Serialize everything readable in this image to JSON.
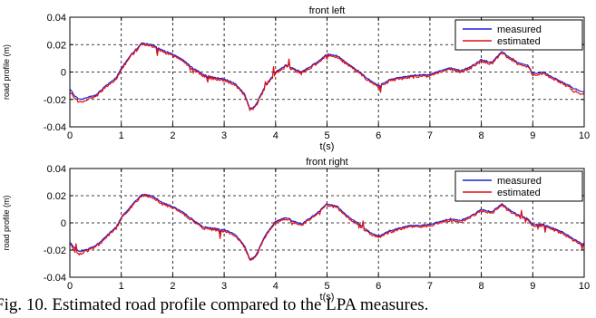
{
  "caption": "Fig. 10.   Estimated road profile compared to the LPA measures.",
  "colors": {
    "measured": "#1f1fd8",
    "estimated": "#e01010",
    "grid": "#000000"
  },
  "chart_data": [
    {
      "type": "line",
      "title": "front left",
      "xlabel": "t(s)",
      "ylabel": "road profile (m)",
      "xlim": [
        0,
        10
      ],
      "ylim": [
        -0.04,
        0.04
      ],
      "xticks": [
        "0",
        "1",
        "2",
        "3",
        "4",
        "5",
        "6",
        "7",
        "8",
        "9",
        "10"
      ],
      "yticks": [
        "0.04",
        "0.02",
        "0",
        "-0.02",
        "-0.04"
      ],
      "grid": true,
      "legend_position": "top-right",
      "x": [
        0,
        0.1,
        0.2,
        0.3,
        0.5,
        0.7,
        0.9,
        1.0,
        1.2,
        1.4,
        1.6,
        1.8,
        2.0,
        2.2,
        2.4,
        2.6,
        2.8,
        3.0,
        3.2,
        3.4,
        3.5,
        3.6,
        3.8,
        4.0,
        4.2,
        4.5,
        4.8,
        5.0,
        5.2,
        5.4,
        5.6,
        5.8,
        6.0,
        6.2,
        6.4,
        6.6,
        6.8,
        7.0,
        7.2,
        7.4,
        7.6,
        7.8,
        8.0,
        8.2,
        8.4,
        8.5,
        8.7,
        8.9,
        9.0,
        9.2,
        9.4,
        9.6,
        9.8,
        10.0
      ],
      "series": [
        {
          "name": "measured",
          "values": [
            -0.012,
            -0.018,
            -0.02,
            -0.019,
            -0.017,
            -0.01,
            -0.004,
            0.003,
            0.013,
            0.021,
            0.02,
            0.016,
            0.013,
            0.009,
            0.003,
            -0.002,
            -0.004,
            -0.005,
            -0.008,
            -0.016,
            -0.027,
            -0.025,
            -0.01,
            0.0,
            0.005,
            0.0,
            0.007,
            0.013,
            0.012,
            0.006,
            0.001,
            -0.005,
            -0.01,
            -0.006,
            -0.004,
            -0.003,
            -0.002,
            -0.002,
            0.001,
            0.003,
            0.001,
            0.004,
            0.009,
            0.007,
            0.015,
            0.012,
            0.007,
            0.005,
            -0.001,
            0.0,
            -0.004,
            -0.008,
            -0.012,
            -0.015
          ]
        },
        {
          "name": "estimated",
          "values": [
            -0.014,
            -0.02,
            -0.022,
            -0.021,
            -0.018,
            -0.011,
            -0.005,
            0.002,
            0.012,
            0.02,
            0.019,
            0.015,
            0.012,
            0.008,
            0.002,
            -0.003,
            -0.005,
            -0.006,
            -0.009,
            -0.017,
            -0.028,
            -0.026,
            -0.011,
            -0.001,
            0.004,
            -0.001,
            0.006,
            0.012,
            0.011,
            0.005,
            0.0,
            -0.006,
            -0.011,
            -0.007,
            -0.005,
            -0.004,
            -0.003,
            -0.003,
            0.0,
            0.002,
            0.0,
            0.003,
            0.008,
            0.006,
            0.014,
            0.011,
            0.006,
            0.004,
            -0.002,
            -0.001,
            -0.005,
            -0.009,
            -0.014,
            -0.017
          ]
        }
      ]
    },
    {
      "type": "line",
      "title": "front right",
      "xlabel": "t(s)",
      "ylabel": "road profile (m)",
      "xlim": [
        0,
        10
      ],
      "ylim": [
        -0.04,
        0.04
      ],
      "xticks": [
        "0",
        "1",
        "2",
        "3",
        "4",
        "5",
        "6",
        "7",
        "8",
        "9",
        "10"
      ],
      "yticks": [
        "0.04",
        "0.02",
        "0",
        "-0.02",
        "-0.04"
      ],
      "grid": true,
      "legend_position": "top-right",
      "x": [
        0,
        0.1,
        0.2,
        0.3,
        0.5,
        0.7,
        0.9,
        1.0,
        1.2,
        1.4,
        1.6,
        1.8,
        2.0,
        2.2,
        2.4,
        2.6,
        2.8,
        3.0,
        3.2,
        3.4,
        3.5,
        3.6,
        3.8,
        4.0,
        4.2,
        4.5,
        4.8,
        5.0,
        5.2,
        5.4,
        5.6,
        5.8,
        6.0,
        6.2,
        6.4,
        6.6,
        6.8,
        7.0,
        7.2,
        7.4,
        7.6,
        7.8,
        8.0,
        8.2,
        8.4,
        8.5,
        8.7,
        8.9,
        9.0,
        9.2,
        9.4,
        9.6,
        9.8,
        10.0
      ],
      "series": [
        {
          "name": "measured",
          "values": [
            -0.014,
            -0.019,
            -0.021,
            -0.02,
            -0.017,
            -0.01,
            -0.003,
            0.004,
            0.013,
            0.021,
            0.02,
            0.015,
            0.012,
            0.008,
            0.002,
            -0.003,
            -0.004,
            -0.005,
            -0.008,
            -0.017,
            -0.027,
            -0.025,
            -0.009,
            0.001,
            0.004,
            -0.001,
            0.007,
            0.014,
            0.012,
            0.005,
            0.0,
            -0.006,
            -0.01,
            -0.006,
            -0.004,
            -0.002,
            -0.002,
            -0.001,
            0.001,
            0.003,
            0.002,
            0.005,
            0.01,
            0.008,
            0.014,
            0.011,
            0.006,
            0.003,
            -0.001,
            -0.001,
            -0.004,
            -0.007,
            -0.012,
            -0.016
          ]
        },
        {
          "name": "estimated",
          "values": [
            -0.015,
            -0.021,
            -0.023,
            -0.021,
            -0.018,
            -0.011,
            -0.004,
            0.003,
            0.012,
            0.02,
            0.019,
            0.014,
            0.011,
            0.007,
            0.001,
            -0.004,
            -0.005,
            -0.006,
            -0.009,
            -0.018,
            -0.028,
            -0.026,
            -0.01,
            0.0,
            0.003,
            -0.002,
            0.006,
            0.013,
            0.011,
            0.004,
            -0.001,
            -0.007,
            -0.011,
            -0.007,
            -0.005,
            -0.003,
            -0.003,
            -0.002,
            0.0,
            0.002,
            0.001,
            0.004,
            0.009,
            0.007,
            0.013,
            0.01,
            0.005,
            0.002,
            -0.002,
            -0.002,
            -0.005,
            -0.008,
            -0.013,
            -0.017
          ]
        }
      ]
    }
  ]
}
